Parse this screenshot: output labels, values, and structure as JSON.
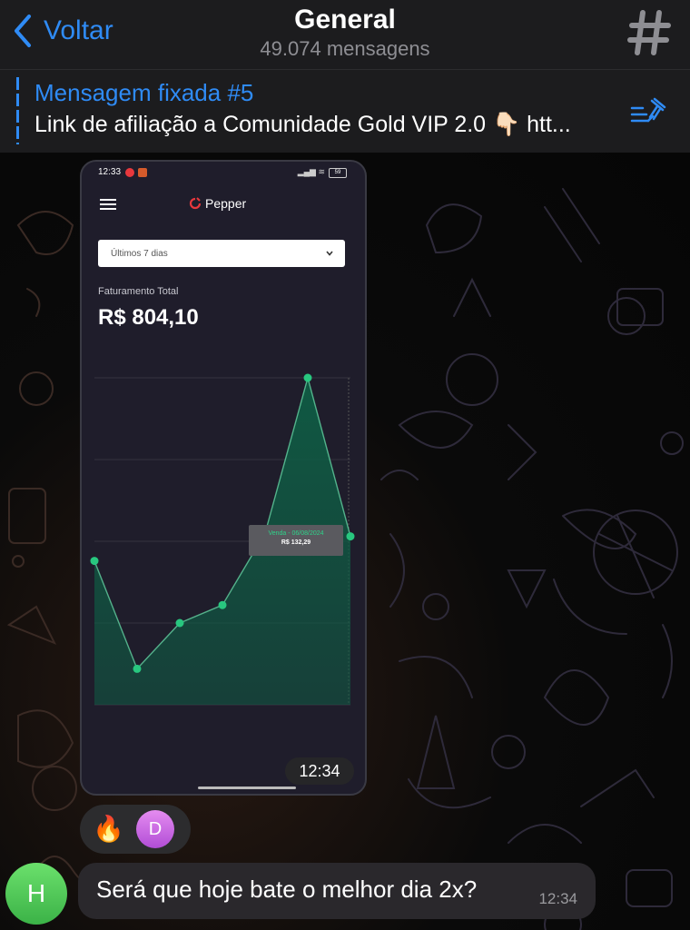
{
  "header": {
    "back_label": "Voltar",
    "title": "General",
    "subtitle": "49.074 mensagens"
  },
  "pinned": {
    "title": "Mensagem fixada #5",
    "text": "Link de afiliação a Comunidade Gold VIP 2.0 👇🏻 htt..."
  },
  "phone": {
    "status_time": "12:33",
    "battery": "59",
    "brand": "Pepper",
    "period": "Últimos 7 dias",
    "total_label": "Faturamento Total",
    "total_value": "R$ 804,10",
    "tooltip_date": "Venda - 06/08/2024",
    "tooltip_value": "R$ 132,29"
  },
  "chart_data": {
    "type": "area",
    "title": "",
    "xlabel": "",
    "ylabel": "",
    "x": [
      1,
      2,
      3,
      4,
      5,
      6,
      7
    ],
    "values": [
      88,
      22,
      50,
      61,
      105,
      200,
      103
    ],
    "ylim": [
      0,
      200
    ],
    "grid": true,
    "colors": {
      "line": "#6ee7b0",
      "fill": "#0f5c44",
      "point": "#28c77f"
    }
  },
  "message_image_time": "12:34",
  "reactions": {
    "emoji": "🔥",
    "avatar_letter": "D"
  },
  "message": {
    "avatar_letter": "H",
    "text": "Será que hoje bate o melhor dia 2x?",
    "time": "12:34"
  },
  "colors": {
    "accent": "#2f8bf5",
    "header_bg": "#1c1c1e",
    "bubble_bg": "#2a282c"
  }
}
